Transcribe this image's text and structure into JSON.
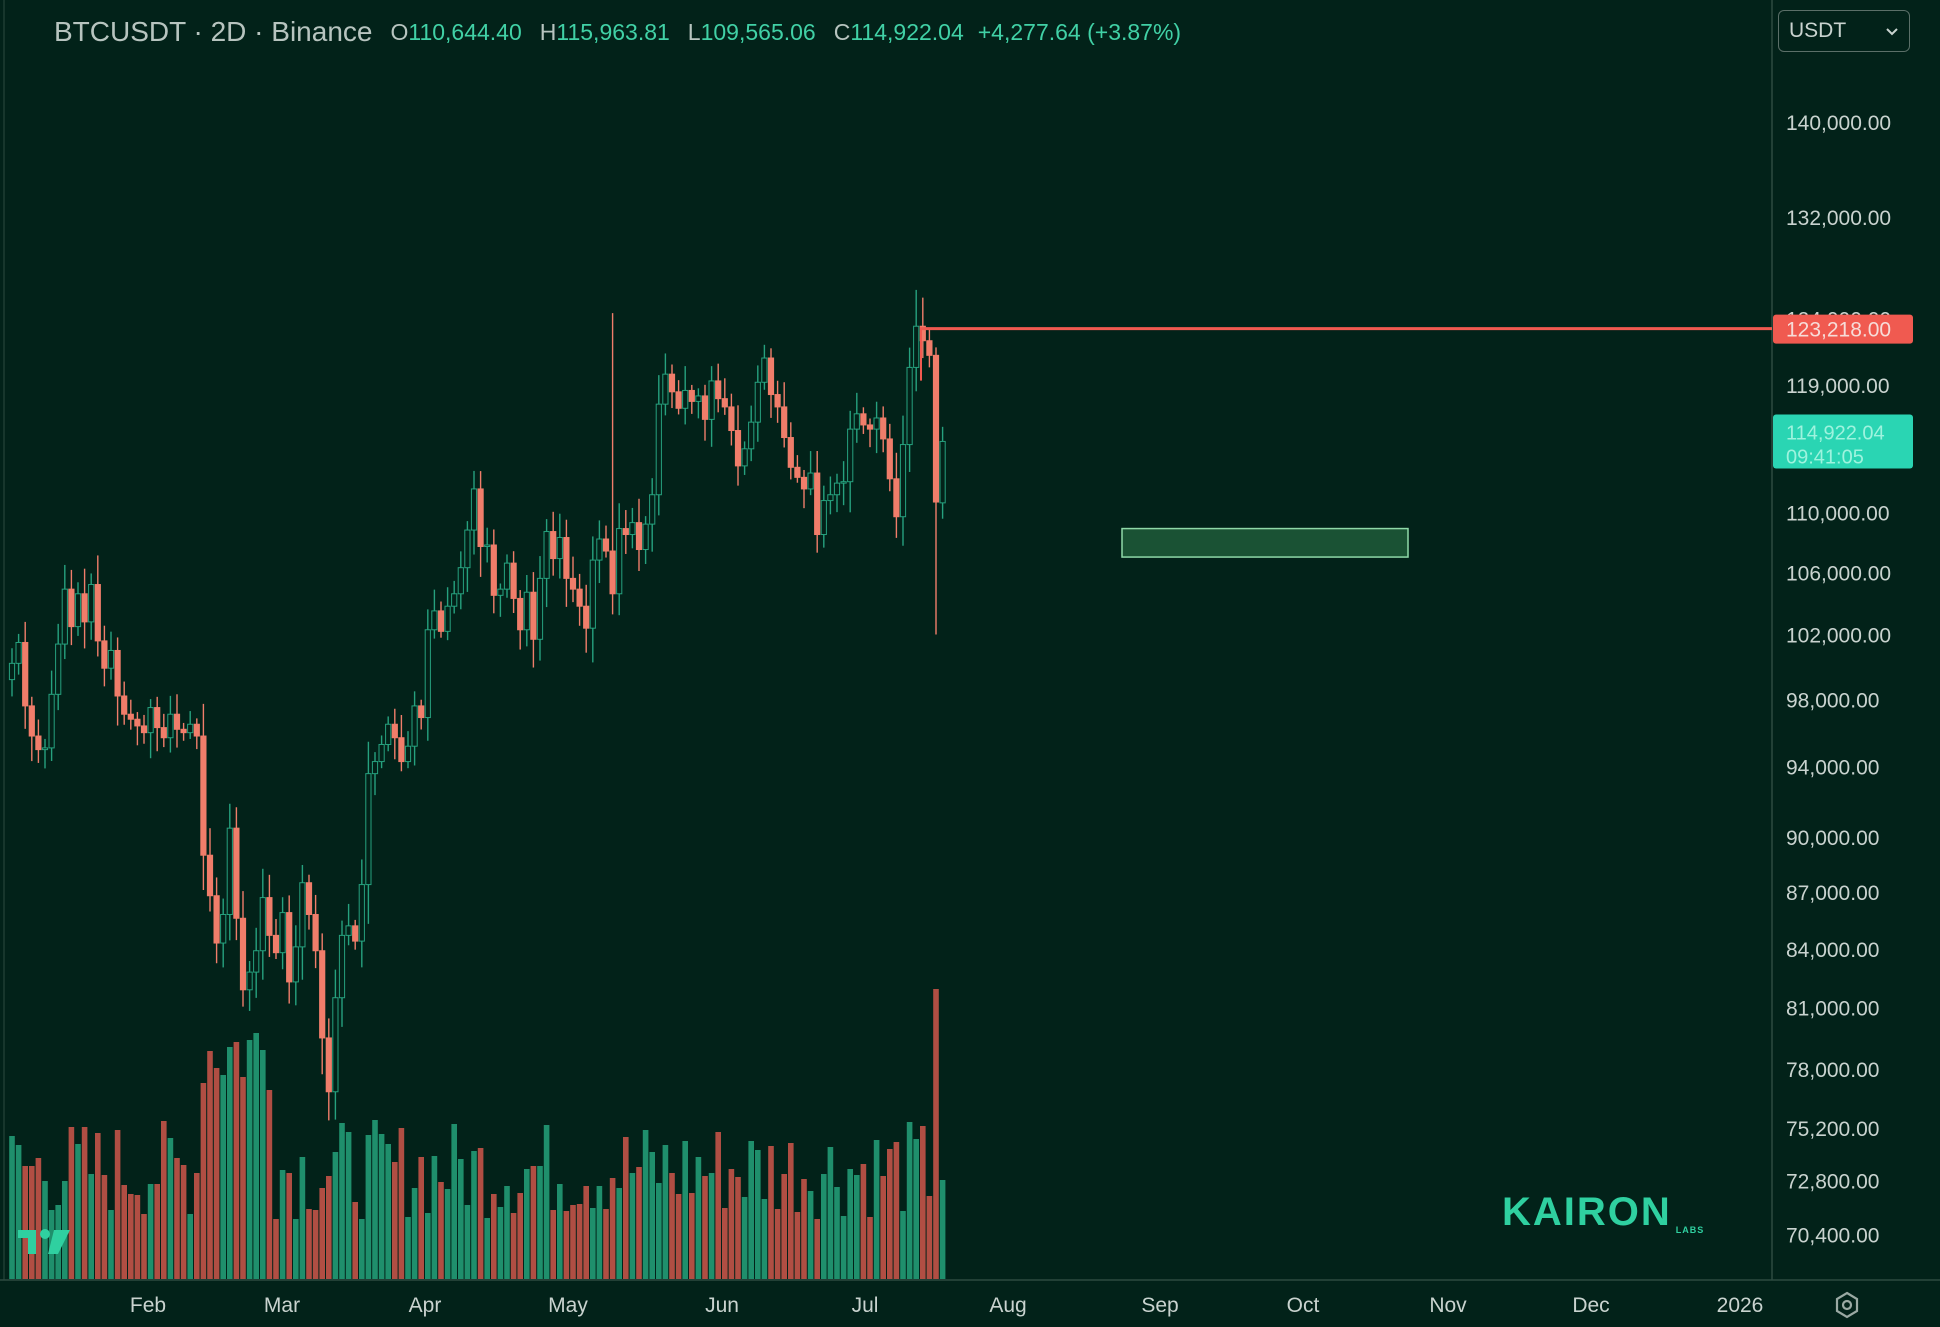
{
  "header": {
    "symbol": "BTCUSDT · 2D · Binance",
    "open_label": "O",
    "open": "110,644.40",
    "high_label": "H",
    "high": "115,963.81",
    "low_label": "L",
    "low": "109,565.06",
    "close_label": "C",
    "close": "114,922.04",
    "change": "+4,277.64 (+3.87%)"
  },
  "currency_selector": {
    "value": "USDT",
    "icon": "chevron-down-icon"
  },
  "logo": {
    "text": "KAIRON",
    "sub": "LABS"
  },
  "colors": {
    "background": "#022219",
    "up": "#26a17e",
    "down": "#f07d6a",
    "resistance": "#f05a50",
    "support_zone": "#1e5a3a",
    "price_tag": "#2ad5b3"
  },
  "chart_data": {
    "type": "candlestick",
    "interval": "2D",
    "x_ticks": [
      "Feb",
      "Mar",
      "Apr",
      "May",
      "Jun",
      "Jul",
      "Aug",
      "Sep",
      "Oct",
      "Nov",
      "Dec",
      "2026"
    ],
    "y_ticks": [
      "140,000.00",
      "132,000.00",
      "124,000.00",
      "119,000.00",
      "110,000.00",
      "106,000.00",
      "102,000.00",
      "98,000.00",
      "94,000.00",
      "90,000.00",
      "87,000.00",
      "84,000.00",
      "81,000.00",
      "78,000.00",
      "75,200.00",
      "72,800.00",
      "70,400.00"
    ],
    "ylim": [
      68500,
      146000
    ],
    "y_scale": "log",
    "resistance": {
      "value": 123218,
      "label": "123,218.00",
      "start": "2025-07-14"
    },
    "last_price": {
      "label": "114,922.04",
      "countdown": "09:41:05"
    },
    "support_zone": {
      "low": 107000,
      "high": 108900,
      "start": "2025-08-24",
      "end": "2025-10-24"
    },
    "closes": [
      [
        100200,
        101500,
        97600,
        95800,
        95000,
        95100,
        98300,
        101400,
        104900,
        102500,
        104600,
        102800,
        105200,
        101600,
        99900,
        101000,
        98200,
        97100,
        96800,
        96400,
        96000,
        97500,
        96300,
        95700,
        97100,
        96200,
        96000,
        96500,
        95800,
        89000,
        86800,
        84300,
        85800,
        90500,
        85600,
        81900,
        82800,
        83900,
        86700,
        84700,
        83800,
        85900,
        82300,
        84100,
        87500,
        85800,
        83900,
        79500,
        76900,
        81500,
        84700,
        85200,
        84400,
        87400,
        93600,
        94300,
        95300,
        96500,
        95700,
        94300,
        95200,
        97600,
        96900,
        102300,
        103500,
        102200,
        103800,
        104600,
        106300,
        108800,
        111600,
        107700,
        107800,
        104500,
        104900,
        106600,
        104300,
        102300,
        104700,
        101700,
        105600,
        108700,
        106900,
        108300,
        105600,
        104900,
        103800,
        102400,
        106800,
        108200,
        107400,
        104600,
        108900,
        108500,
        109300,
        107500,
        109200,
        111200,
        117600,
        119800,
        118500,
        117300,
        118600,
        117800,
        118200,
        116500,
        119300,
        118000,
        117400,
        115700,
        113200,
        114400,
        116300,
        119200,
        121000,
        118300,
        117400,
        115200,
        113100,
        112400,
        111600,
        112700,
        108500,
        110800,
        111200,
        112000,
        112100,
        115800,
        116900,
        116100,
        115800,
        116600,
        115100,
        112300,
        109700,
        114700,
        120300,
        123400,
        122300,
        121200,
        110700,
        114922
      ]
    ],
    "volume_note": "volume histogram shown under candles, no numeric scale"
  }
}
